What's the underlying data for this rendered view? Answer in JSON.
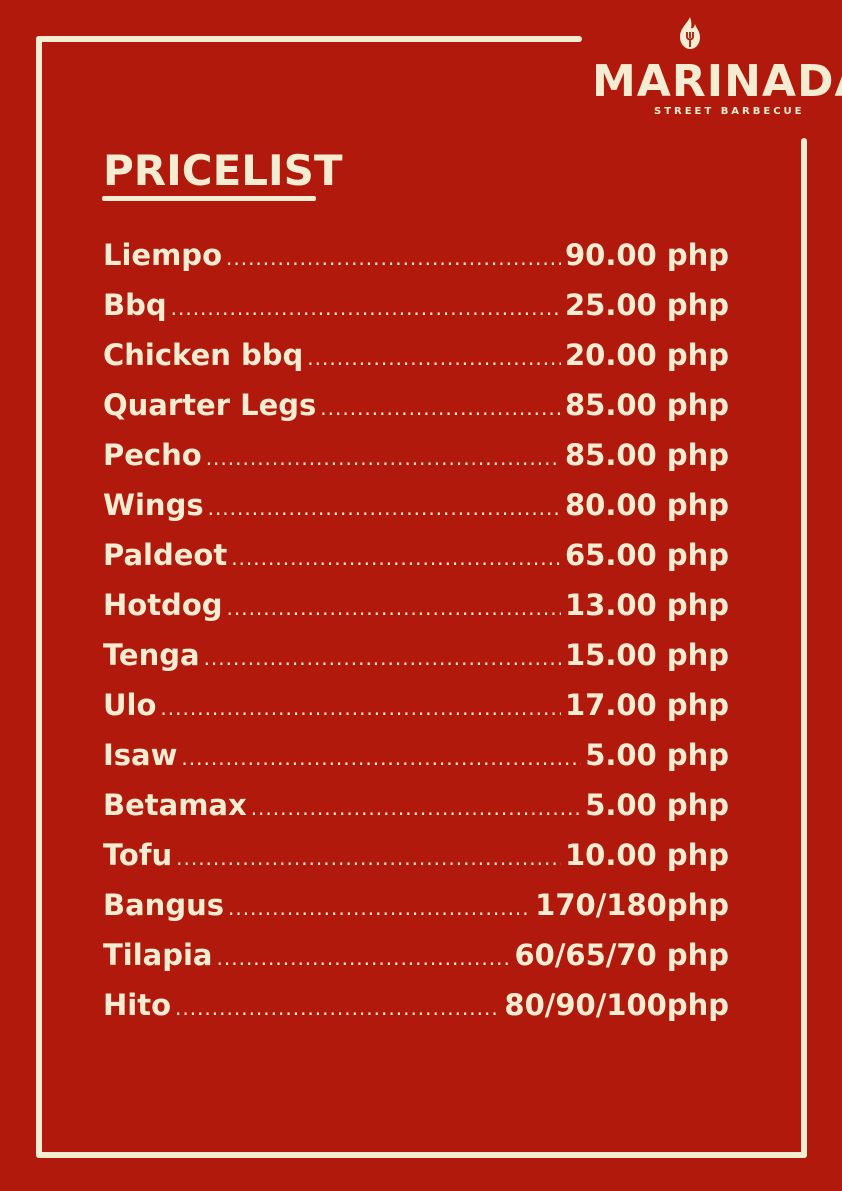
{
  "brand": {
    "name": "MARINADA",
    "tagline": "STREET BARBECUE",
    "icon": "flame-fork-icon"
  },
  "title": "PRICELIST",
  "colors": {
    "background": "#b0190b",
    "foreground": "#f6ecd2"
  },
  "items": [
    {
      "name": "Liempo",
      "price": "90.00 php"
    },
    {
      "name": "Bbq",
      "price": "25.00 php"
    },
    {
      "name": "Chicken bbq",
      "price": "20.00 php"
    },
    {
      "name": "Quarter Legs",
      "price": "85.00 php"
    },
    {
      "name": "Pecho",
      "price": "85.00 php"
    },
    {
      "name": "Wings",
      "price": "80.00 php"
    },
    {
      "name": "Paldeot",
      "price": "65.00 php"
    },
    {
      "name": "Hotdog",
      "price": "13.00 php"
    },
    {
      "name": "Tenga",
      "price": "15.00 php"
    },
    {
      "name": "Ulo",
      "price": "17.00 php"
    },
    {
      "name": "Isaw",
      "price": "5.00 php"
    },
    {
      "name": "Betamax",
      "price": "5.00 php"
    },
    {
      "name": "Tofu",
      "price": "10.00 php"
    },
    {
      "name": "Bangus",
      "price": "170/180php"
    },
    {
      "name": "Tilapia",
      "price": "60/65/70 php"
    },
    {
      "name": "Hito",
      "price": "80/90/100php"
    }
  ]
}
